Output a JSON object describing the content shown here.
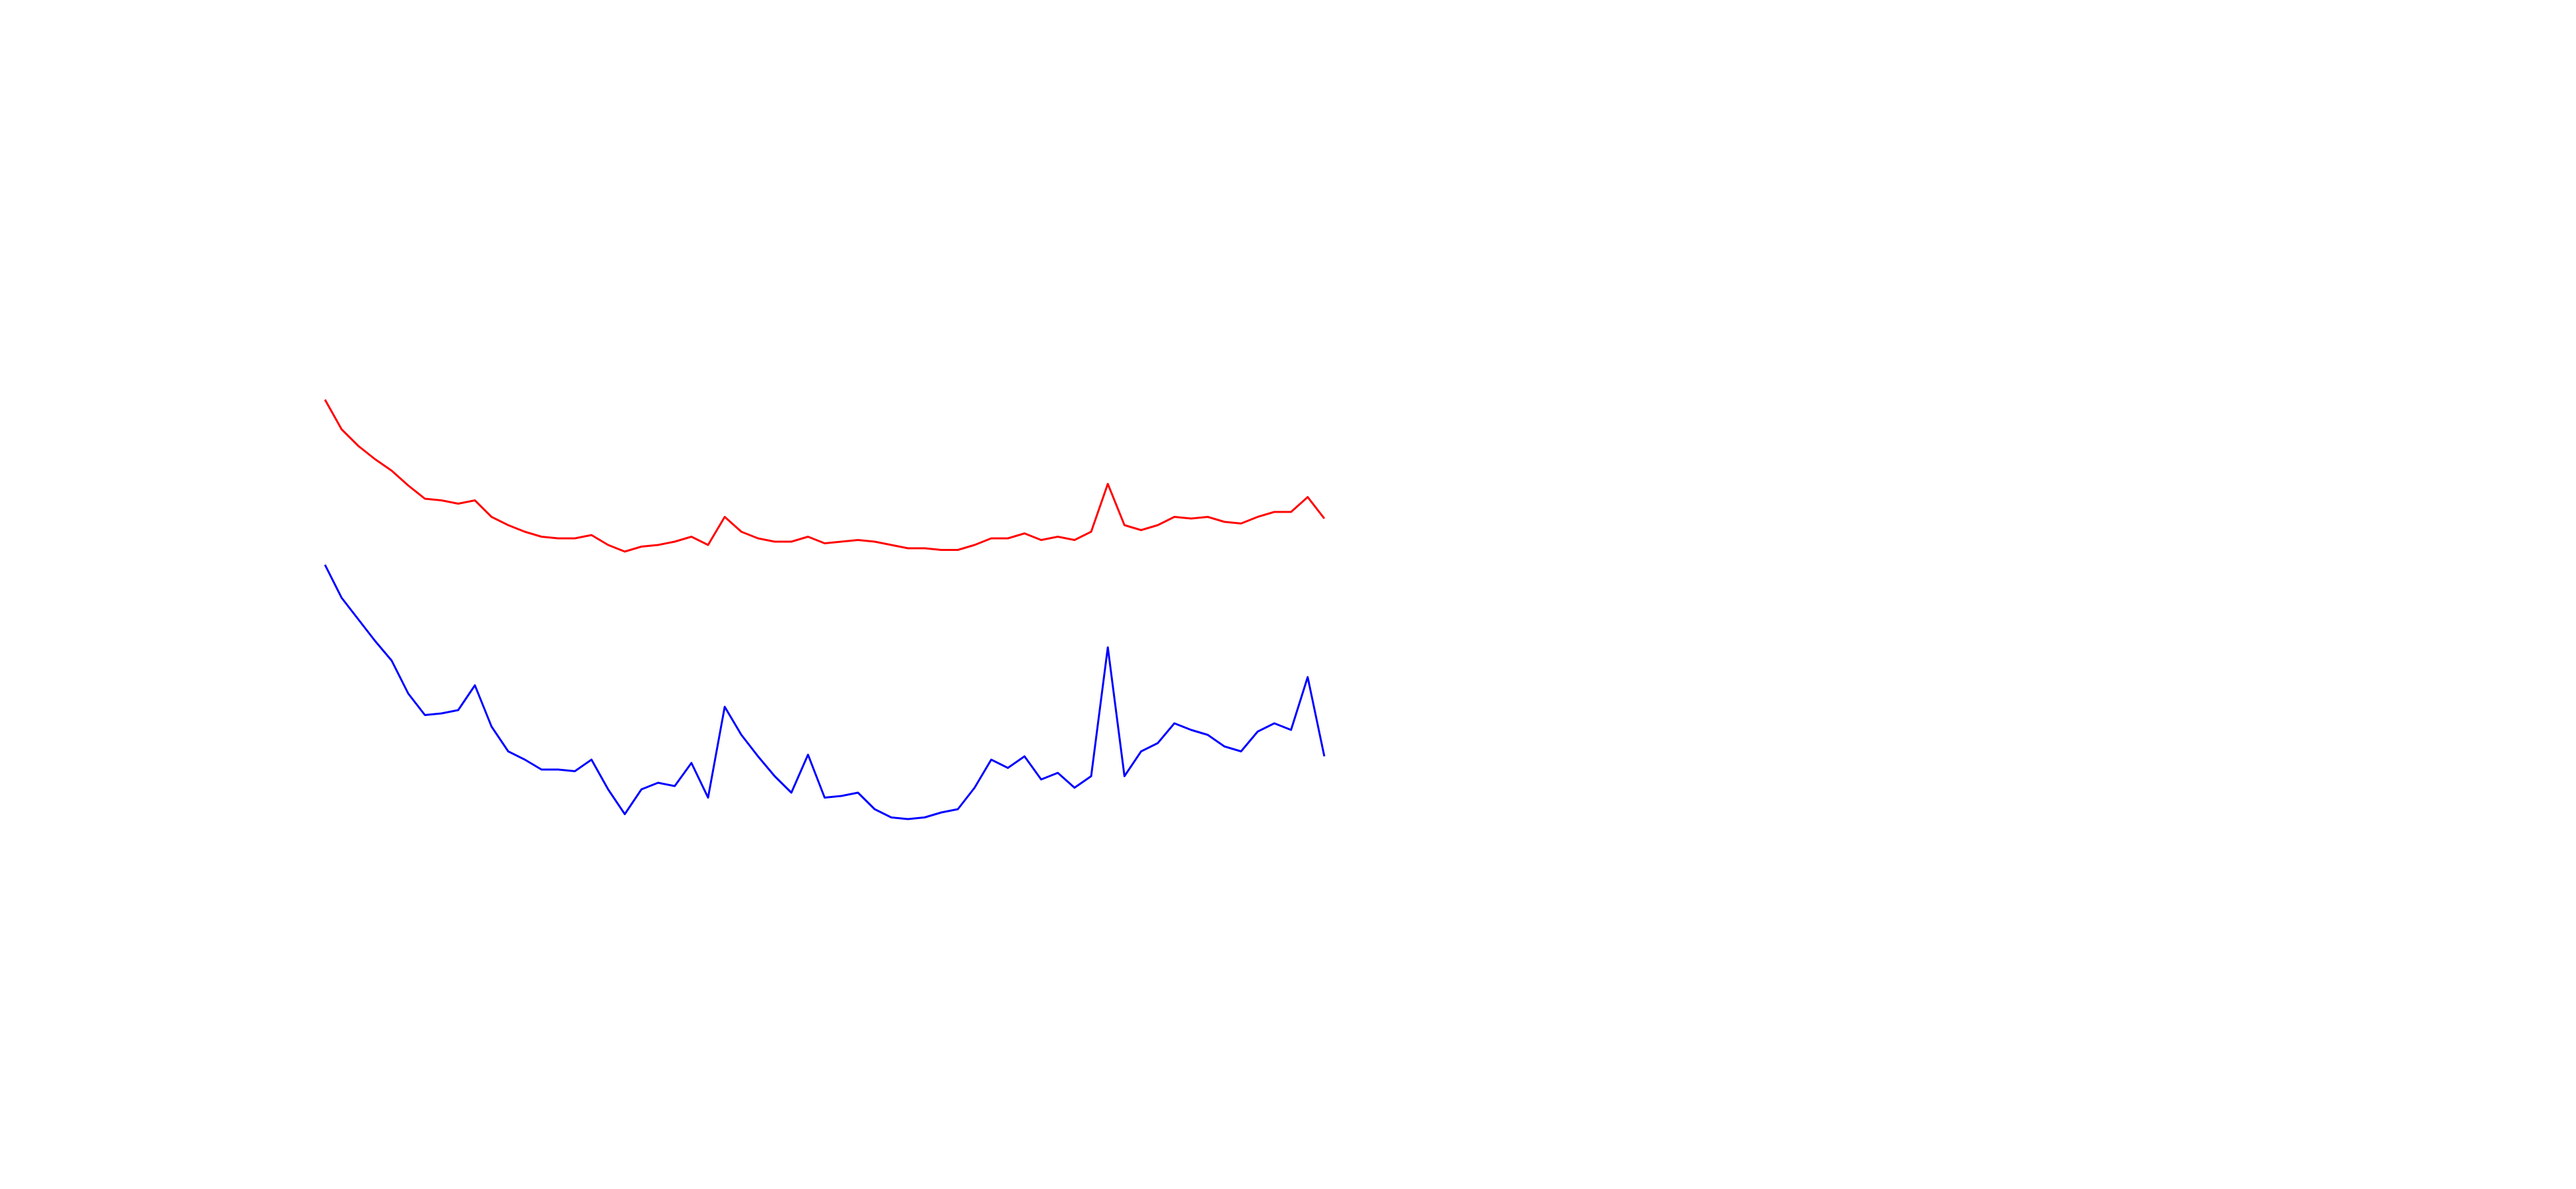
{
  "chart_data": {
    "type": "line",
    "ylim": [
      0,
      720
    ],
    "series": [
      {
        "color": "#ff0000",
        "values": [
          478,
          460,
          450,
          442,
          435,
          426,
          418,
          417,
          415,
          417,
          407,
          402,
          398,
          395,
          394,
          394,
          396,
          390,
          386,
          389,
          390,
          392,
          395,
          390,
          407,
          398,
          394,
          392,
          392,
          395,
          391,
          392,
          393,
          392,
          390,
          388,
          388,
          387,
          387,
          390,
          394,
          394,
          397,
          393,
          395,
          393,
          398,
          427,
          402,
          399,
          402,
          407,
          406,
          407,
          404,
          403,
          407,
          410,
          410,
          419,
          406
        ]
      },
      {
        "color": "#0000ff",
        "values": [
          378,
          358,
          345,
          332,
          320,
          300,
          287,
          288,
          290,
          305,
          280,
          265,
          260,
          254,
          254,
          253,
          260,
          242,
          227,
          242,
          246,
          244,
          258,
          237,
          292,
          275,
          262,
          250,
          240,
          263,
          237,
          238,
          240,
          230,
          225,
          224,
          225,
          228,
          230,
          243,
          260,
          255,
          262,
          248,
          252,
          243,
          250,
          328,
          250,
          265,
          270,
          282,
          278,
          275,
          268,
          265,
          277,
          282,
          278,
          310,
          262
        ]
      }
    ]
  }
}
